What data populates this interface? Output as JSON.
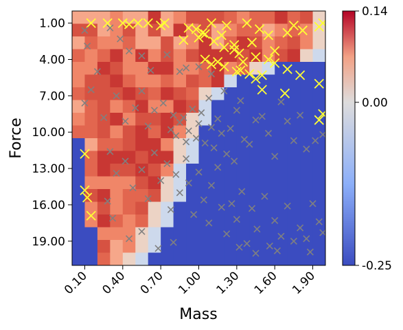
{
  "chart_data": {
    "type": "heatmap",
    "title": "",
    "xlabel": "Mass",
    "ylabel": "Force",
    "x_range": [
      0.0,
      2.0
    ],
    "y_range": [
      0.0,
      21.0
    ],
    "x_ticks": [
      0.1,
      0.4,
      0.7,
      1.0,
      1.3,
      1.6,
      1.9
    ],
    "x_tick_labels": [
      "0.10",
      "0.40",
      "0.70",
      "1.00",
      "1.30",
      "1.60",
      "1.90"
    ],
    "y_ticks": [
      1,
      4,
      7,
      10,
      13,
      16,
      19
    ],
    "y_tick_labels": [
      "1.00",
      "4.00",
      "7.00",
      "10.00",
      "13.00",
      "16.00",
      "19.00"
    ],
    "y_inverted": true,
    "grid": false,
    "colormap": "coolwarm",
    "colorbar": {
      "min": -0.25,
      "max": 0.14,
      "center": 0.0,
      "ticks": [
        0.14,
        0.0,
        -0.25
      ],
      "tick_labels": [
        "0.14",
        "0.00",
        "-0.25"
      ]
    },
    "grid_size": [
      20,
      20
    ],
    "boundary_x_per_row": [
      2.1,
      2.1,
      2.1,
      1.95,
      1.55,
      1.32,
      1.15,
      1.12,
      1.08,
      1.03,
      1.0,
      0.95,
      0.92,
      0.88,
      0.85,
      0.8,
      0.75,
      0.7,
      0.65,
      0.6
    ],
    "series": [
      {
        "name": "",
        "marker": "x",
        "color": "#ffff33",
        "points": [
          [
            0.15,
            1.0
          ],
          [
            0.28,
            1.0
          ],
          [
            0.4,
            1.0
          ],
          [
            0.45,
            1.1
          ],
          [
            0.52,
            1.0
          ],
          [
            0.6,
            1.0
          ],
          [
            0.7,
            1.2
          ],
          [
            0.73,
            1.0
          ],
          [
            0.92,
            1.4
          ],
          [
            0.88,
            2.4
          ],
          [
            0.98,
            1.5
          ],
          [
            1.0,
            2.2
          ],
          [
            1.03,
            1.8
          ],
          [
            1.05,
            1.9
          ],
          [
            1.1,
            1.0
          ],
          [
            1.12,
            2.5
          ],
          [
            1.18,
            2.0
          ],
          [
            1.2,
            3.0
          ],
          [
            1.22,
            1.2
          ],
          [
            1.28,
            2.8
          ],
          [
            1.32,
            3.5
          ],
          [
            1.38,
            1.0
          ],
          [
            1.42,
            2.6
          ],
          [
            1.48,
            1.5
          ],
          [
            1.55,
            2.0
          ],
          [
            1.6,
            3.3
          ],
          [
            1.7,
            1.8
          ],
          [
            1.75,
            1.2
          ],
          [
            1.82,
            1.6
          ],
          [
            1.95,
            1.3
          ],
          [
            1.98,
            1.0
          ],
          [
            1.05,
            4.0
          ],
          [
            1.15,
            4.2
          ],
          [
            1.2,
            4.6
          ],
          [
            1.3,
            5.0
          ],
          [
            1.35,
            4.2
          ],
          [
            1.4,
            5.2
          ],
          [
            1.45,
            5.6
          ],
          [
            1.5,
            5.3
          ],
          [
            1.55,
            4.0
          ],
          [
            1.6,
            4.3
          ],
          [
            1.7,
            4.8
          ],
          [
            1.8,
            5.3
          ],
          [
            1.95,
            6.0
          ],
          [
            1.5,
            6.5
          ],
          [
            1.68,
            6.8
          ],
          [
            1.98,
            8.5
          ],
          [
            1.95,
            9.0
          ],
          [
            0.1,
            11.8
          ],
          [
            0.1,
            14.8
          ],
          [
            0.12,
            15.4
          ],
          [
            0.15,
            16.9
          ],
          [
            1.28,
            3.2
          ],
          [
            1.45,
            3.8
          ],
          [
            1.1,
            4.4
          ],
          [
            1.33,
            4.9
          ]
        ]
      },
      {
        "name": "",
        "marker": "x",
        "color": "#808080",
        "points": [
          [
            0.1,
            1.6
          ],
          [
            0.12,
            2.9
          ],
          [
            0.3,
            1.4
          ],
          [
            0.38,
            2.3
          ],
          [
            0.45,
            3.3
          ],
          [
            0.55,
            3.7
          ],
          [
            0.62,
            4.9
          ],
          [
            0.75,
            3.6
          ],
          [
            0.85,
            5.0
          ],
          [
            0.9,
            4.7
          ],
          [
            1.0,
            4.6
          ],
          [
            1.1,
            5.2
          ],
          [
            0.2,
            5.0
          ],
          [
            0.15,
            6.5
          ],
          [
            0.1,
            7.6
          ],
          [
            0.25,
            8.8
          ],
          [
            0.35,
            7.0
          ],
          [
            0.42,
            9.1
          ],
          [
            0.5,
            8.0
          ],
          [
            0.55,
            6.6
          ],
          [
            0.6,
            9.5
          ],
          [
            0.65,
            8.2
          ],
          [
            0.72,
            7.6
          ],
          [
            0.78,
            9.8
          ],
          [
            0.8,
            8.6
          ],
          [
            0.82,
            10.3
          ],
          [
            0.85,
            9.2
          ],
          [
            0.88,
            8.8
          ],
          [
            0.9,
            10.8
          ],
          [
            0.92,
            9.9
          ],
          [
            0.95,
            8.1
          ],
          [
            0.98,
            10.5
          ],
          [
            1.0,
            9.3
          ],
          [
            1.02,
            8.4
          ],
          [
            1.05,
            10.9
          ],
          [
            1.08,
            7.2
          ],
          [
            1.1,
            9.6
          ],
          [
            1.12,
            11.3
          ],
          [
            1.15,
            8.9
          ],
          [
            1.18,
            10.1
          ],
          [
            1.2,
            6.6
          ],
          [
            1.22,
            11.8
          ],
          [
            1.25,
            9.7
          ],
          [
            1.28,
            12.4
          ],
          [
            1.3,
            8.2
          ],
          [
            1.33,
            7.4
          ],
          [
            1.36,
            10.6
          ],
          [
            1.4,
            11.0
          ],
          [
            1.45,
            9.0
          ],
          [
            1.5,
            8.7
          ],
          [
            1.55,
            10.1
          ],
          [
            1.6,
            12.0
          ],
          [
            1.65,
            7.5
          ],
          [
            1.7,
            9.1
          ],
          [
            1.75,
            10.7
          ],
          [
            1.8,
            8.6
          ],
          [
            1.85,
            11.4
          ],
          [
            1.92,
            10.7
          ],
          [
            1.98,
            10.2
          ],
          [
            0.3,
            11.6
          ],
          [
            0.35,
            13.4
          ],
          [
            0.42,
            12.4
          ],
          [
            0.48,
            14.6
          ],
          [
            0.55,
            13.1
          ],
          [
            0.6,
            15.5
          ],
          [
            0.65,
            11.7
          ],
          [
            0.7,
            14.0
          ],
          [
            0.75,
            12.6
          ],
          [
            0.78,
            16.4
          ],
          [
            0.82,
            13.5
          ],
          [
            0.85,
            15.0
          ],
          [
            0.9,
            12.2
          ],
          [
            0.92,
            14.2
          ],
          [
            0.96,
            16.8
          ],
          [
            1.0,
            13.3
          ],
          [
            1.04,
            15.6
          ],
          [
            1.08,
            17.5
          ],
          [
            1.1,
            14.4
          ],
          [
            1.15,
            12.9
          ],
          [
            1.18,
            16.2
          ],
          [
            1.22,
            18.4
          ],
          [
            1.26,
            15.9
          ],
          [
            1.3,
            17.2
          ],
          [
            1.34,
            14.9
          ],
          [
            1.38,
            19.2
          ],
          [
            1.42,
            16.3
          ],
          [
            1.46,
            18.0
          ],
          [
            1.52,
            15.3
          ],
          [
            1.56,
            19.4
          ],
          [
            1.6,
            17.3
          ],
          [
            1.65,
            18.6
          ],
          [
            1.7,
            16.1
          ],
          [
            1.75,
            19.0
          ],
          [
            1.8,
            17.9
          ],
          [
            1.85,
            18.8
          ],
          [
            1.9,
            15.9
          ],
          [
            1.95,
            17.4
          ],
          [
            1.98,
            18.3
          ],
          [
            0.28,
            15.7
          ],
          [
            0.32,
            17.1
          ],
          [
            0.45,
            18.8
          ],
          [
            0.55,
            18.2
          ],
          [
            0.68,
            19.6
          ],
          [
            0.8,
            19.1
          ],
          [
            1.32,
            19.5
          ],
          [
            1.45,
            20.0
          ],
          [
            1.62,
            19.8
          ],
          [
            1.88,
            19.9
          ]
        ]
      }
    ]
  }
}
